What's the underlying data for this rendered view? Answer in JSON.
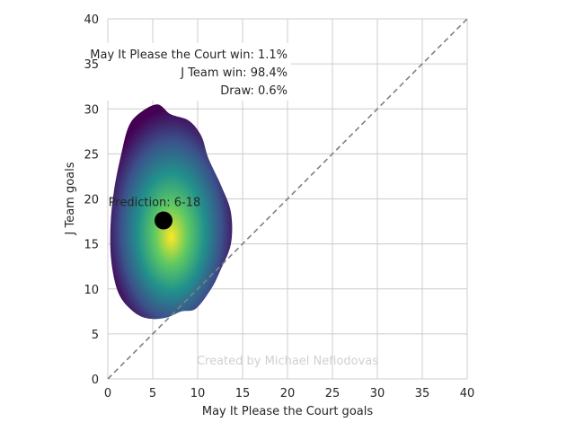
{
  "chart_data": {
    "type": "density",
    "xlabel": "May It Please the Court goals",
    "ylabel": "J Team goals",
    "xlim": [
      0,
      40
    ],
    "ylim": [
      0,
      40
    ],
    "xticks": [
      0,
      5,
      10,
      15,
      20,
      25,
      30,
      35,
      40
    ],
    "yticks": [
      0,
      5,
      10,
      15,
      20,
      25,
      30,
      35,
      40
    ],
    "grid": true,
    "diagonal_line": {
      "from": [
        0,
        0
      ],
      "to": [
        40,
        40
      ],
      "style": "dashed",
      "color": "#808080"
    },
    "prediction_point": {
      "x": 6.2,
      "y": 17.6,
      "label": "Prediction: 6-18"
    },
    "density_region": {
      "center": [
        6.0,
        16.0
      ],
      "outline": [
        [
          5.5,
          30.5
        ],
        [
          7.0,
          29.4
        ],
        [
          9.0,
          28.7
        ],
        [
          10.4,
          27.0
        ],
        [
          11.2,
          24.5
        ],
        [
          12.6,
          21.5
        ],
        [
          13.7,
          18.5
        ],
        [
          13.7,
          15.0
        ],
        [
          12.5,
          12.0
        ],
        [
          11.5,
          10.0
        ],
        [
          9.8,
          7.8
        ],
        [
          8.2,
          7.5
        ],
        [
          6.5,
          6.8
        ],
        [
          4.5,
          6.7
        ],
        [
          2.8,
          7.5
        ],
        [
          1.2,
          9.5
        ],
        [
          0.4,
          13.0
        ],
        [
          0.3,
          17.0
        ],
        [
          0.7,
          21.0
        ],
        [
          1.5,
          25.0
        ],
        [
          2.3,
          28.0
        ],
        [
          3.5,
          29.5
        ]
      ],
      "colormap": [
        "#440154",
        "#3b528b",
        "#21918c",
        "#5ec962",
        "#fde725"
      ]
    },
    "annotations": [
      "May It Please the Court win: 1.1%",
      "J Team win: 98.4%",
      "Draw: 0.6%"
    ],
    "watermark": "Created by Michael Nefiodovas"
  }
}
